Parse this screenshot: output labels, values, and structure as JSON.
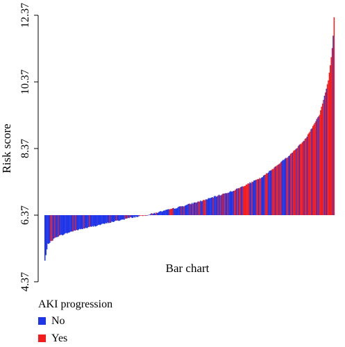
{
  "chart_data": {
    "type": "bar",
    "title": "",
    "xlabel": "Bar chart",
    "ylabel": "Risk score",
    "baseline": 6.37,
    "ylim": [
      4.37,
      12.37
    ],
    "yticks": [
      4.37,
      6.37,
      8.37,
      10.37,
      12.37
    ],
    "ytick_labels": [
      "4.37",
      "6.37",
      "8.37",
      "10.37",
      "12.37"
    ],
    "n_bars": 300,
    "legend_title": "AKI progression",
    "legend_position": "bottom-left",
    "series": [
      {
        "name": "No",
        "color": "#1f35e8"
      },
      {
        "name": "Yes",
        "color": "#f21c1c"
      }
    ],
    "sorted_profile": [
      {
        "rank_fraction": 0.0,
        "value": 5.0
      },
      {
        "rank_fraction": 0.01,
        "value": 5.5
      },
      {
        "rank_fraction": 0.04,
        "value": 5.72
      },
      {
        "rank_fraction": 0.1,
        "value": 5.9
      },
      {
        "rank_fraction": 0.2,
        "value": 6.1
      },
      {
        "rank_fraction": 0.3,
        "value": 6.3
      },
      {
        "rank_fraction": 0.35,
        "value": 6.37
      },
      {
        "rank_fraction": 0.45,
        "value": 6.58
      },
      {
        "rank_fraction": 0.55,
        "value": 6.82
      },
      {
        "rank_fraction": 0.65,
        "value": 7.1
      },
      {
        "rank_fraction": 0.75,
        "value": 7.5
      },
      {
        "rank_fraction": 0.85,
        "value": 8.2
      },
      {
        "rank_fraction": 0.9,
        "value": 8.65
      },
      {
        "rank_fraction": 0.95,
        "value": 9.4
      },
      {
        "rank_fraction": 0.98,
        "value": 10.4
      },
      {
        "rank_fraction": 0.995,
        "value": 11.5
      },
      {
        "rank_fraction": 1.0,
        "value": 12.3
      }
    ],
    "yes_share_by_rank": [
      {
        "rank_fraction": 0.0,
        "share": 0.12
      },
      {
        "rank_fraction": 0.35,
        "share": 0.18
      },
      {
        "rank_fraction": 0.6,
        "share": 0.35
      },
      {
        "rank_fraction": 0.8,
        "share": 0.5
      },
      {
        "rank_fraction": 0.9,
        "share": 0.68
      },
      {
        "rank_fraction": 1.0,
        "share": 0.85
      }
    ]
  }
}
